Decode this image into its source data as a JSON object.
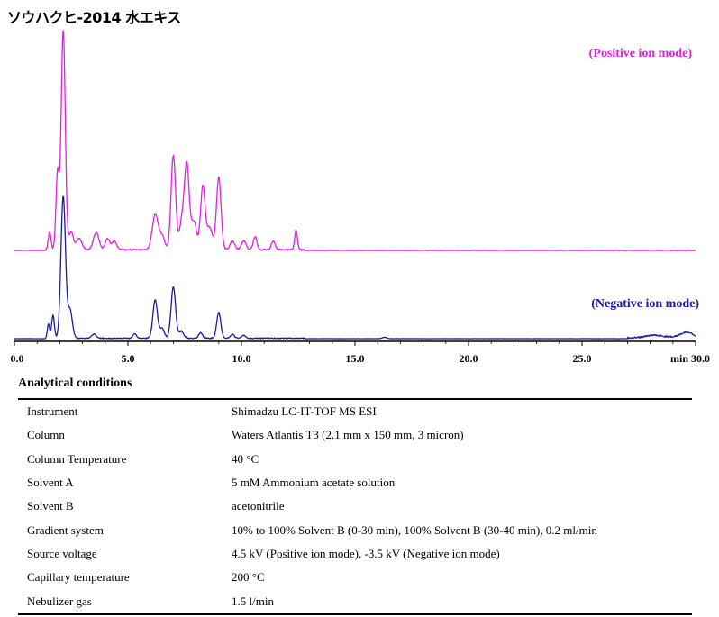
{
  "title": "ソウハクヒ-2014 水エキス",
  "chart_data": {
    "type": "line",
    "x_unit_label": "min",
    "xlim": [
      0,
      30
    ],
    "x_ticks": [
      0.0,
      5.0,
      10.0,
      15.0,
      20.0,
      25.0,
      30.0
    ],
    "x_tick_labels": [
      "0.0",
      "5.0",
      "10.0",
      "15.0",
      "20.0",
      "25.0",
      "30.0"
    ],
    "series": [
      {
        "name": "(Positive ion mode)",
        "color": "#e020e0",
        "baseline_noise": 0.004,
        "peaks": [
          {
            "rt": 1.55,
            "h": 0.08,
            "w": 0.06
          },
          {
            "rt": 1.9,
            "h": 0.35,
            "w": 0.07
          },
          {
            "rt": 2.15,
            "h": 1.0,
            "w": 0.09
          },
          {
            "rt": 2.5,
            "h": 0.08,
            "w": 0.1
          },
          {
            "rt": 2.85,
            "h": 0.05,
            "w": 0.12
          },
          {
            "rt": 3.6,
            "h": 0.08,
            "w": 0.12
          },
          {
            "rt": 4.1,
            "h": 0.05,
            "w": 0.1
          },
          {
            "rt": 4.4,
            "h": 0.04,
            "w": 0.1
          },
          {
            "rt": 6.2,
            "h": 0.16,
            "w": 0.13
          },
          {
            "rt": 6.5,
            "h": 0.06,
            "w": 0.12
          },
          {
            "rt": 7.0,
            "h": 0.43,
            "w": 0.1
          },
          {
            "rt": 7.4,
            "h": 0.14,
            "w": 0.12
          },
          {
            "rt": 7.6,
            "h": 0.36,
            "w": 0.1
          },
          {
            "rt": 7.9,
            "h": 0.13,
            "w": 0.12
          },
          {
            "rt": 8.3,
            "h": 0.29,
            "w": 0.1
          },
          {
            "rt": 8.6,
            "h": 0.1,
            "w": 0.12
          },
          {
            "rt": 9.0,
            "h": 0.33,
            "w": 0.1
          },
          {
            "rt": 9.6,
            "h": 0.04,
            "w": 0.1
          },
          {
            "rt": 10.1,
            "h": 0.04,
            "w": 0.1
          },
          {
            "rt": 10.6,
            "h": 0.06,
            "w": 0.08
          },
          {
            "rt": 11.4,
            "h": 0.04,
            "w": 0.08
          },
          {
            "rt": 12.4,
            "h": 0.09,
            "w": 0.06
          }
        ]
      },
      {
        "name": "(Negative ion mode)",
        "color": "#1a1aa8",
        "baseline_noise": 0.004,
        "peaks": [
          {
            "rt": 1.5,
            "h": 0.1,
            "w": 0.05
          },
          {
            "rt": 1.7,
            "h": 0.16,
            "w": 0.06
          },
          {
            "rt": 2.15,
            "h": 1.0,
            "w": 0.1
          },
          {
            "rt": 2.45,
            "h": 0.2,
            "w": 0.1
          },
          {
            "rt": 3.5,
            "h": 0.03,
            "w": 0.1
          },
          {
            "rt": 5.3,
            "h": 0.03,
            "w": 0.08
          },
          {
            "rt": 6.2,
            "h": 0.27,
            "w": 0.1
          },
          {
            "rt": 6.5,
            "h": 0.07,
            "w": 0.1
          },
          {
            "rt": 7.0,
            "h": 0.36,
            "w": 0.1
          },
          {
            "rt": 7.35,
            "h": 0.05,
            "w": 0.1
          },
          {
            "rt": 8.2,
            "h": 0.04,
            "w": 0.08
          },
          {
            "rt": 9.0,
            "h": 0.18,
            "w": 0.09
          },
          {
            "rt": 9.6,
            "h": 0.03,
            "w": 0.08
          },
          {
            "rt": 10.1,
            "h": 0.02,
            "w": 0.08
          },
          {
            "rt": 16.3,
            "h": 0.01,
            "w": 0.1
          },
          {
            "rt": 28.2,
            "h": 0.02,
            "w": 0.4
          },
          {
            "rt": 29.6,
            "h": 0.04,
            "w": 0.3
          }
        ]
      }
    ]
  },
  "conditions": {
    "heading": "Analytical conditions",
    "rows": [
      {
        "key": "Instrument",
        "value": "Shimadzu LC-IT-TOF MS ESI"
      },
      {
        "key": "Column",
        "value": "Waters Atlantis T3 (2.1 mm x 150 mm, 3 micron)"
      },
      {
        "key": "Column Temperature",
        "value": "40 °C"
      },
      {
        "key": "Solvent A",
        "value": "5 mM Ammonium acetate solution"
      },
      {
        "key": "Solvent B",
        "value": "acetonitrile"
      },
      {
        "key": "Gradient system",
        "value": "10% to 100% Solvent B (0-30 min), 100% Solvent B (30-40 min), 0.2 ml/min"
      },
      {
        "key": "Source voltage",
        "value": "4.5 kV (Positive ion mode), -3.5 kV (Negative ion mode)"
      },
      {
        "key": "Capillary temperature",
        "value": "200 °C"
      },
      {
        "key": "Nebulizer gas",
        "value": "1.5 l/min"
      }
    ]
  }
}
